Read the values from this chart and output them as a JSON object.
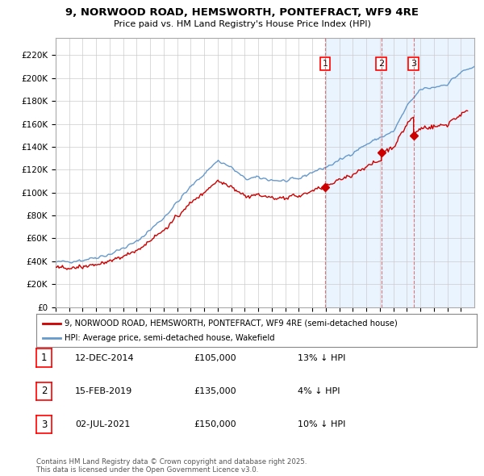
{
  "title1": "9, NORWOOD ROAD, HEMSWORTH, PONTEFRACT, WF9 4RE",
  "title2": "Price paid vs. HM Land Registry's House Price Index (HPI)",
  "ylabel_vals": [
    0,
    20000,
    40000,
    60000,
    80000,
    100000,
    120000,
    140000,
    160000,
    180000,
    200000,
    220000
  ],
  "ylabel_labels": [
    "£0",
    "£20K",
    "£40K",
    "£60K",
    "£80K",
    "£100K",
    "£120K",
    "£140K",
    "£160K",
    "£180K",
    "£200K",
    "£220K"
  ],
  "ylim": [
    0,
    235000
  ],
  "xlim_start": 1995.0,
  "xlim_end": 2026.0,
  "legend1": "9, NORWOOD ROAD, HEMSWORTH, PONTEFRACT, WF9 4RE (semi-detached house)",
  "legend2": "HPI: Average price, semi-detached house, Wakefield",
  "transactions": [
    {
      "num": 1,
      "date": "12-DEC-2014",
      "x": 2014.95,
      "price": 105000,
      "hpi_pct": "13% ↓ HPI"
    },
    {
      "num": 2,
      "date": "15-FEB-2019",
      "x": 2019.12,
      "price": 135000,
      "hpi_pct": "4% ↓ HPI"
    },
    {
      "num": 3,
      "date": "02-JUL-2021",
      "x": 2021.5,
      "price": 150000,
      "hpi_pct": "10% ↓ HPI"
    }
  ],
  "footer": "Contains HM Land Registry data © Crown copyright and database right 2025.\nThis data is licensed under the Open Government Licence v3.0.",
  "line_color_red": "#cc0000",
  "line_color_blue": "#6699cc",
  "shade_color": "#ddeeff",
  "bg_color": "#ffffff",
  "grid_color": "#cccccc"
}
